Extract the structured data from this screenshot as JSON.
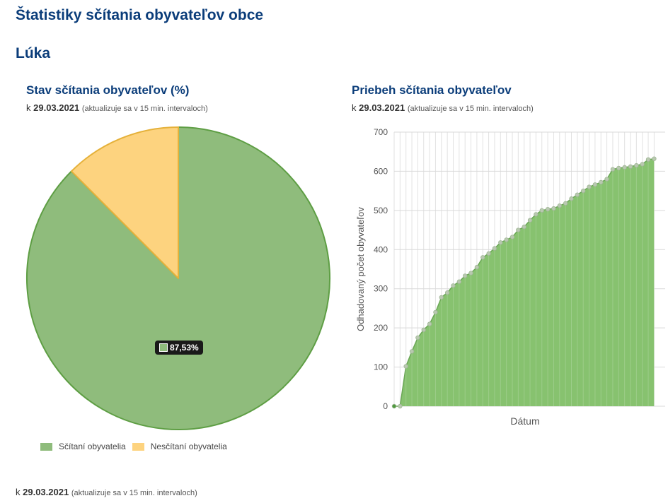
{
  "page": {
    "title": "Štatistiky sčítania obyvateľov obce",
    "municipality": "Lúka"
  },
  "pie_section": {
    "title": "Stav sčítania obyvateľov (%)",
    "asof_prefix": "k",
    "date": "29.03.2021",
    "note": "(aktualizuje sa v 15 min. intervaloch)",
    "tooltip": "87,53%"
  },
  "line_section": {
    "title": "Priebeh sčítania obyvateľov",
    "asof_prefix": "k",
    "date": "29.03.2021",
    "note": "(aktualizuje sa v 15 min. intervaloch)"
  },
  "footer": {
    "asof_prefix": "k",
    "date": "29.03.2021",
    "note": "(aktualizuje sa v 15 min. intervaloch)"
  },
  "colors": {
    "counted": "#8fbc7c",
    "counted_stroke": "#5e9e44",
    "not_counted": "#fdd37f",
    "not_counted_stroke": "#e5b13a",
    "area": "#87c26f",
    "heading": "#0b3d7a"
  },
  "chart_data": [
    {
      "type": "pie",
      "title": "Stav sčítania obyvateľov (%)",
      "labels": [
        "Sčítaní obyvatelia",
        "Nesčítaní obyvatelia"
      ],
      "values": [
        87.53,
        12.47
      ],
      "legend_position": "bottom-left"
    },
    {
      "type": "area",
      "title": "Priebeh sčítania obyvateľov",
      "xlabel": "Dátum",
      "ylabel": "Odhadovaný počet obyvateľov",
      "ylim": [
        0,
        700
      ],
      "yticks": [
        "0",
        "100",
        "200",
        "300",
        "400",
        "500",
        "600",
        "700"
      ],
      "grid": true,
      "y": [
        0,
        0,
        102,
        140,
        175,
        195,
        210,
        240,
        278,
        290,
        308,
        318,
        333,
        340,
        355,
        380,
        390,
        403,
        418,
        425,
        432,
        450,
        458,
        475,
        490,
        500,
        503,
        505,
        512,
        518,
        530,
        540,
        550,
        560,
        566,
        572,
        580,
        605,
        608,
        610,
        612,
        615,
        618,
        630,
        632
      ]
    }
  ]
}
